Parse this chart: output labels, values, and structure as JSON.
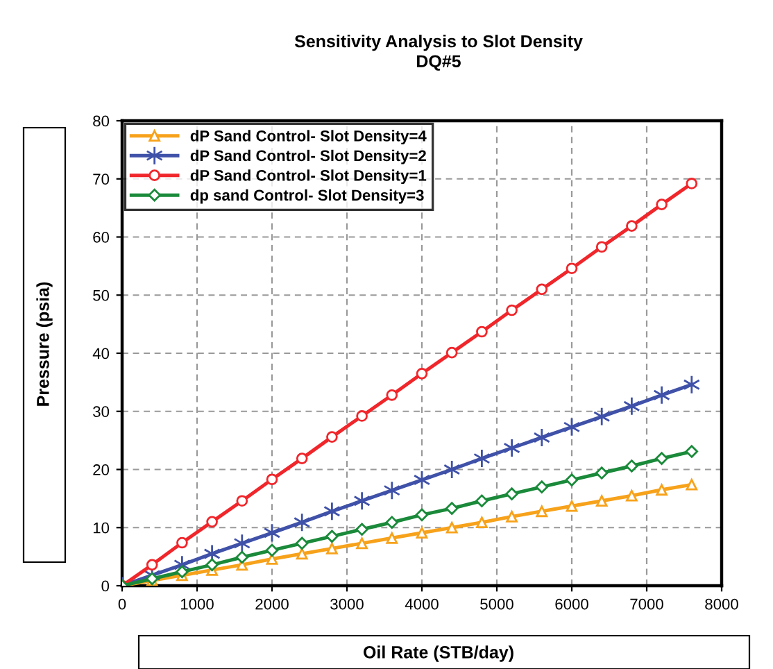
{
  "chart_data": {
    "type": "line",
    "title": "Sensitivity Analysis to Slot Density\nDQ#5",
    "xlabel": "Oil Rate (STB/day)",
    "ylabel": "Pressure (psia)",
    "x": [
      0,
      400,
      800,
      1200,
      1600,
      2000,
      2400,
      2800,
      3200,
      3600,
      4000,
      4400,
      4800,
      5200,
      5600,
      6000,
      6400,
      6800,
      7200,
      7600
    ],
    "series": [
      {
        "name": "dP Sand Control- Slot Density=4",
        "color": "#f7a21b",
        "marker": "triangle",
        "values": [
          0,
          0.9,
          1.8,
          2.7,
          3.6,
          4.6,
          5.5,
          6.4,
          7.3,
          8.2,
          9.1,
          10,
          10.9,
          11.9,
          12.8,
          13.7,
          14.6,
          15.5,
          16.5,
          17.4
        ]
      },
      {
        "name": "dP Sand Control- Slot Density=2",
        "color": "#3f51a8",
        "marker": "cross",
        "values": [
          0,
          1.8,
          3.6,
          5.5,
          7.3,
          9.1,
          10.9,
          12.8,
          14.6,
          16.4,
          18.2,
          20,
          21.9,
          23.7,
          25.5,
          27.3,
          29.1,
          30.9,
          32.8,
          34.6
        ]
      },
      {
        "name": "dP Sand Control- Slot Density=1",
        "color": "#f0262b",
        "marker": "circle",
        "values": [
          0,
          3.6,
          7.4,
          11,
          14.6,
          18.3,
          21.9,
          25.6,
          29.2,
          32.8,
          36.5,
          40.1,
          43.7,
          47.4,
          51,
          54.6,
          58.3,
          61.9,
          65.6,
          69.2
        ]
      },
      {
        "name": "dp sand Control- Slot Density=3",
        "color": "#1a8a3a",
        "marker": "diamond",
        "values": [
          0,
          1.2,
          2.4,
          3.6,
          4.9,
          6.1,
          7.3,
          8.5,
          9.7,
          10.9,
          12.2,
          13.3,
          14.6,
          15.8,
          17,
          18.2,
          19.4,
          20.6,
          21.9,
          23.1
        ]
      }
    ],
    "xlim": [
      0,
      8000
    ],
    "xticks": [
      0,
      1000,
      2000,
      3000,
      4000,
      5000,
      6000,
      7000,
      8000
    ],
    "ylim": [
      0,
      80
    ],
    "yticks": [
      0,
      10,
      20,
      30,
      40,
      50,
      60,
      70,
      80
    ],
    "grid": true,
    "legend": "top left",
    "line_style": "solid"
  }
}
